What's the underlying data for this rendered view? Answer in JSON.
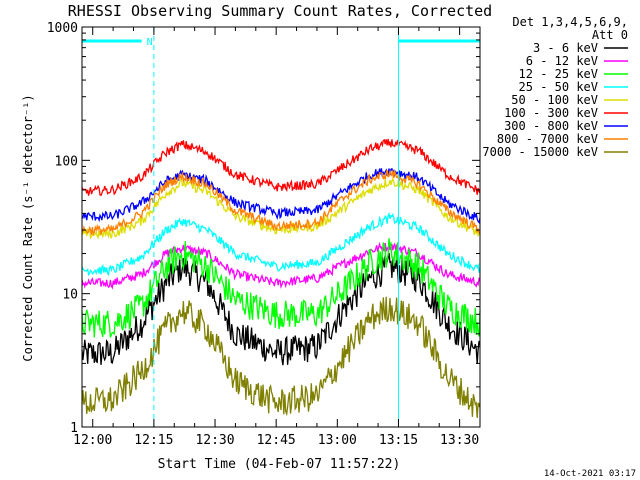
{
  "chart_data": {
    "type": "line",
    "title": "RHESSI Observing Summary Count Rates, Corrected",
    "xlabel": "Start Time (04-Feb-07 11:57:22)",
    "ylabel": "Corrected Count Rate (s⁻¹ detector⁻¹)",
    "y_scale": "log",
    "ylim": [
      1,
      1000
    ],
    "xlim": [
      "11:57:22",
      "13:35:00"
    ],
    "x_ticks": [
      "12:00",
      "12:15",
      "12:30",
      "12:45",
      "13:00",
      "13:15",
      "13:30"
    ],
    "y_ticks": [
      "1",
      "10",
      "100",
      "1000"
    ],
    "legend_header": [
      "Det 1,3,4,5,6,9,",
      "Att 0"
    ],
    "legend_placement": "top-right",
    "grid": false,
    "series": [
      {
        "name": "3 - 6 keV",
        "color": "#000000",
        "x": [
          "11:57:22",
          "12:05",
          "12:12",
          "12:18",
          "12:22",
          "12:28",
          "12:35",
          "12:45",
          "12:55",
          "13:02",
          "13:08",
          "13:13",
          "13:20",
          "13:27",
          "13:35"
        ],
        "y": [
          3.5,
          3.6,
          6,
          12,
          16,
          12,
          5,
          3.6,
          4,
          8,
          13,
          16,
          13,
          6,
          3.6
        ]
      },
      {
        "name": "6 - 12 keV",
        "color": "#ff00ff",
        "x": [
          "11:57:22",
          "12:05",
          "12:12",
          "12:18",
          "12:22",
          "12:28",
          "12:35",
          "12:45",
          "12:55",
          "13:02",
          "13:08",
          "13:13",
          "13:20",
          "13:27",
          "13:35"
        ],
        "y": [
          12,
          12,
          14,
          20,
          22,
          20,
          14,
          12,
          13,
          17,
          21,
          23,
          20,
          14,
          12
        ]
      },
      {
        "name": "12 - 25 keV",
        "color": "#00ff00",
        "x": [
          "11:57:22",
          "12:05",
          "12:12",
          "12:18",
          "12:22",
          "12:28",
          "12:35",
          "12:45",
          "12:55",
          "13:02",
          "13:08",
          "13:13",
          "13:20",
          "13:27",
          "13:35"
        ],
        "y": [
          6,
          6,
          8,
          16,
          20,
          16,
          9,
          7,
          7,
          11,
          17,
          21,
          16,
          8,
          6
        ]
      },
      {
        "name": "25 - 50 keV",
        "color": "#00ffff",
        "x": [
          "11:57:22",
          "12:05",
          "12:12",
          "12:18",
          "12:22",
          "12:28",
          "12:35",
          "12:45",
          "12:55",
          "13:02",
          "13:08",
          "13:13",
          "13:20",
          "13:27",
          "13:35"
        ],
        "y": [
          15,
          15,
          19,
          30,
          35,
          30,
          20,
          16,
          17,
          24,
          32,
          37,
          31,
          20,
          15
        ]
      },
      {
        "name": "50 - 100 keV",
        "color": "#dddd00",
        "x": [
          "11:57:22",
          "12:05",
          "12:12",
          "12:18",
          "12:22",
          "12:28",
          "12:35",
          "12:45",
          "12:55",
          "13:02",
          "13:08",
          "13:13",
          "13:20",
          "13:27",
          "13:35"
        ],
        "y": [
          28,
          28,
          35,
          57,
          68,
          58,
          38,
          30,
          32,
          45,
          60,
          70,
          60,
          38,
          28
        ]
      },
      {
        "name": "100 - 300 keV",
        "color": "#ff0000",
        "x": [
          "11:57:22",
          "12:05",
          "12:12",
          "12:18",
          "12:22",
          "12:28",
          "12:35",
          "12:45",
          "12:55",
          "13:02",
          "13:08",
          "13:13",
          "13:20",
          "13:27",
          "13:35"
        ],
        "y": [
          58,
          60,
          75,
          115,
          132,
          115,
          78,
          63,
          66,
          92,
          122,
          136,
          118,
          78,
          58
        ]
      },
      {
        "name": "300 - 800 keV",
        "color": "#0000ff",
        "x": [
          "11:57:22",
          "12:05",
          "12:12",
          "12:18",
          "12:22",
          "12:28",
          "12:35",
          "12:45",
          "12:55",
          "13:02",
          "13:08",
          "13:13",
          "13:20",
          "13:27",
          "13:35"
        ],
        "y": [
          38,
          38,
          48,
          70,
          78,
          70,
          48,
          40,
          42,
          60,
          78,
          84,
          74,
          48,
          36
        ]
      },
      {
        "name": "800 - 7000 keV",
        "color": "#ff8000",
        "x": [
          "11:57:22",
          "12:05",
          "12:12",
          "12:18",
          "12:22",
          "12:28",
          "12:35",
          "12:45",
          "12:55",
          "13:02",
          "13:08",
          "13:13",
          "13:20",
          "13:27",
          "13:35"
        ],
        "y": [
          30,
          30,
          40,
          66,
          76,
          66,
          42,
          32,
          34,
          54,
          72,
          80,
          66,
          42,
          30
        ]
      },
      {
        "name": "7000 - 15000 keV",
        "color": "#808000",
        "x": [
          "11:57:22",
          "12:05",
          "12:12",
          "12:18",
          "12:22",
          "12:28",
          "12:35",
          "12:45",
          "12:55",
          "13:02",
          "13:08",
          "13:13",
          "13:20",
          "13:27",
          "13:35"
        ],
        "y": [
          1.5,
          1.6,
          2.6,
          5.5,
          7.5,
          5.5,
          2.2,
          1.5,
          1.7,
          3.5,
          6.5,
          8,
          6,
          2.4,
          1.3
        ]
      }
    ],
    "annotations": {
      "vlines_cyan_solid": [
        "11:57:22",
        "13:15",
        "13:35"
      ],
      "vlines_cyan_dashed": [
        "12:15",
        "13:35"
      ],
      "hbar_cyan": [
        [
          "11:57:22",
          "12:12"
        ],
        [
          "13:15",
          "13:35"
        ]
      ],
      "night_label": "N"
    }
  },
  "footer": {
    "timestamp": "14-Oct-2021 03:17"
  }
}
